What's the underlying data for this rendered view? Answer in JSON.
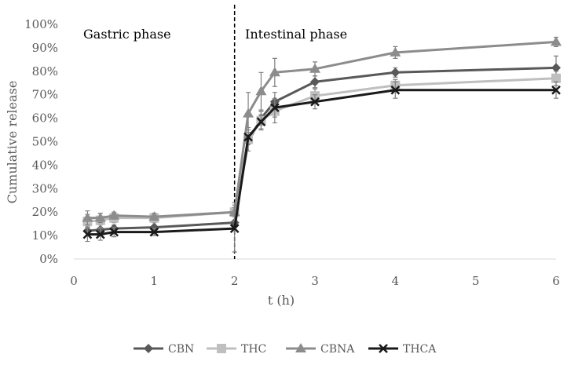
{
  "chart_data": {
    "type": "line",
    "title": "",
    "xlabel": "t (h)",
    "ylabel": "Cumulative release",
    "xlim": [
      0,
      6
    ],
    "ylim": [
      0,
      100
    ],
    "x_ticks": [
      0,
      1,
      2,
      3,
      4,
      5,
      6
    ],
    "y_ticks": [
      "0%",
      "10%",
      "20%",
      "30%",
      "40%",
      "50%",
      "60%",
      "70%",
      "80%",
      "90%",
      "100%"
    ],
    "grid": false,
    "legend_position": "bottom",
    "annotations": [
      "Gastric phase",
      "Intestinal phase"
    ],
    "phase_divider_x": 2,
    "x": [
      0.17,
      0.33,
      0.5,
      1,
      2,
      2.17,
      2.33,
      2.5,
      3,
      4,
      6
    ],
    "series": [
      {
        "name": "CBN",
        "color": "#595959",
        "marker": "diamond",
        "values": [
          12,
          12.5,
          13,
          13.5,
          15.5,
          50,
          60,
          67,
          75.5,
          79.5,
          81.5
        ],
        "errors": [
          2,
          2,
          1.5,
          1,
          3,
          4,
          3,
          4,
          2.5,
          2,
          5
        ]
      },
      {
        "name": "THC",
        "color": "#bfbfbf",
        "marker": "square",
        "values": [
          16,
          16.5,
          17.5,
          17.5,
          20,
          51,
          59,
          63,
          69.5,
          74,
          77
        ],
        "errors": [
          3,
          3,
          2,
          2,
          4,
          5,
          4,
          5,
          3,
          2.5,
          3
        ]
      },
      {
        "name": "CBNA",
        "color": "#8c8c8c",
        "marker": "triangle",
        "values": [
          17.5,
          17.5,
          18.5,
          18,
          20,
          62,
          71.5,
          79.5,
          81,
          88,
          92.5
        ],
        "errors": [
          3,
          2,
          1.5,
          1.5,
          2,
          9,
          8,
          6,
          3,
          2.5,
          2
        ]
      },
      {
        "name": "THCA",
        "color": "#1a1a1a",
        "marker": "x",
        "values": [
          10.5,
          10.5,
          11.5,
          11.5,
          13,
          52,
          58.5,
          64.5,
          67,
          72,
          72
        ],
        "errors": [
          3,
          2.5,
          2,
          1.5,
          10,
          3,
          3,
          4,
          3,
          3.5,
          3.5
        ]
      }
    ]
  }
}
